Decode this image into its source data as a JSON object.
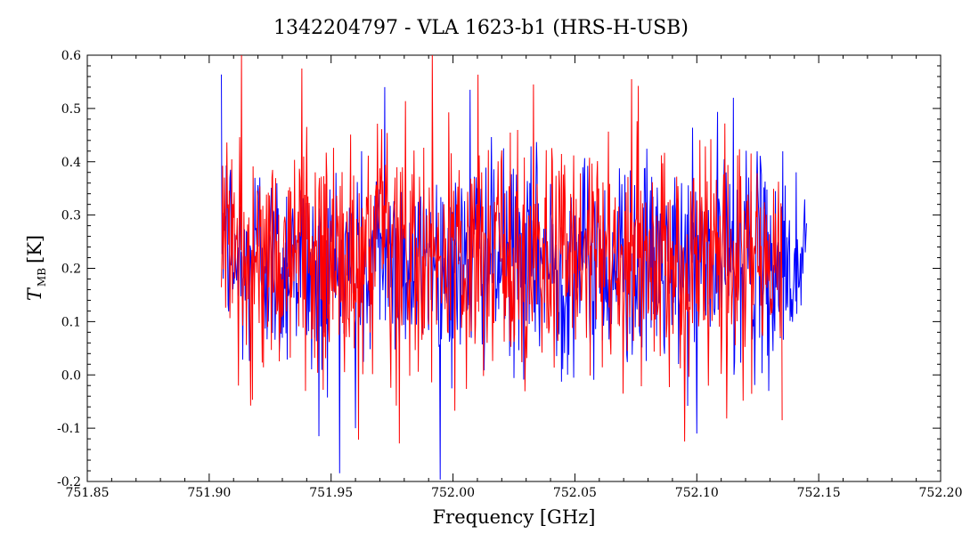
{
  "chart_data": {
    "type": "line",
    "title": "1342204797 - VLA 1623-b1 (HRS-H-USB)",
    "xlabel": "Frequency [GHz]",
    "ylabel": {
      "symbol": "T",
      "subscript": "MB",
      "unit": "[K]"
    },
    "xlim": [
      751.85,
      752.2
    ],
    "ylim": [
      -0.2,
      0.6
    ],
    "xticks": [
      751.85,
      751.9,
      751.95,
      752.0,
      752.05,
      752.1,
      752.15,
      752.2
    ],
    "xtick_labels": [
      "751.85",
      "751.90",
      "751.95",
      "752.00",
      "752.05",
      "752.10",
      "752.15",
      "752.20"
    ],
    "yticks": [
      -0.2,
      -0.1,
      0.0,
      0.1,
      0.2,
      0.3,
      0.4,
      0.5,
      0.6
    ],
    "ytick_labels": [
      "-0.2",
      "-0.1",
      "0.0",
      "0.1",
      "0.2",
      "0.3",
      "0.4",
      "0.5",
      "0.6"
    ],
    "grid": false,
    "legend": "none",
    "series": [
      {
        "color": "#0000ff",
        "x_start": 751.905,
        "x_end": 752.145,
        "points": [
          [
            751.905,
            0.3
          ],
          [
            751.91,
            0.22
          ],
          [
            751.915,
            0.18
          ],
          [
            751.92,
            0.25
          ],
          [
            751.925,
            0.21
          ],
          [
            751.93,
            0.19
          ],
          [
            751.935,
            0.24
          ],
          [
            751.94,
            0.2
          ],
          [
            751.945,
            0.16
          ],
          [
            751.95,
            0.22
          ],
          [
            751.955,
            0.19
          ],
          [
            751.96,
            0.23
          ],
          [
            751.965,
            0.17
          ],
          [
            751.97,
            0.25
          ],
          [
            751.975,
            0.21
          ],
          [
            751.98,
            0.22
          ],
          [
            751.985,
            0.18
          ],
          [
            751.99,
            0.24
          ],
          [
            751.995,
            0.2
          ],
          [
            752.0,
            0.21
          ],
          [
            752.005,
            0.19
          ],
          [
            752.01,
            0.24
          ],
          [
            752.015,
            0.22
          ],
          [
            752.02,
            0.2
          ],
          [
            752.025,
            0.23
          ],
          [
            752.03,
            0.19
          ],
          [
            752.035,
            0.22
          ],
          [
            752.04,
            0.21
          ],
          [
            752.045,
            0.18
          ],
          [
            752.05,
            0.24
          ],
          [
            752.055,
            0.2
          ],
          [
            752.06,
            0.22
          ],
          [
            752.065,
            0.19
          ],
          [
            752.07,
            0.23
          ],
          [
            752.075,
            0.21
          ],
          [
            752.08,
            0.2
          ],
          [
            752.085,
            0.22
          ],
          [
            752.09,
            0.19
          ],
          [
            752.095,
            0.21
          ],
          [
            752.1,
            0.23
          ],
          [
            752.105,
            0.2
          ],
          [
            752.11,
            0.24
          ],
          [
            752.115,
            0.22
          ],
          [
            752.12,
            0.25
          ],
          [
            752.125,
            0.21
          ],
          [
            752.13,
            0.19
          ],
          [
            752.135,
            0.22
          ],
          [
            752.14,
            0.2
          ],
          [
            752.145,
            0.23
          ]
        ],
        "noise_rms": 0.095,
        "extremes": [
          {
            "x": 751.945,
            "y": -0.115
          },
          {
            "x": 751.96,
            "y": -0.1
          },
          {
            "x": 751.972,
            "y": 0.54
          },
          {
            "x": 752.007,
            "y": 0.535
          },
          {
            "x": 752.115,
            "y": 0.52
          },
          {
            "x": 752.1,
            "y": -0.11
          }
        ]
      },
      {
        "color": "#ff0000",
        "x_start": 751.905,
        "x_end": 752.135,
        "points": [
          [
            751.905,
            0.33
          ],
          [
            751.91,
            0.24
          ],
          [
            751.915,
            0.2
          ],
          [
            751.92,
            0.22
          ],
          [
            751.925,
            0.19
          ],
          [
            751.93,
            0.23
          ],
          [
            751.935,
            0.21
          ],
          [
            751.94,
            0.25
          ],
          [
            751.945,
            0.18
          ],
          [
            751.95,
            0.24
          ],
          [
            751.955,
            0.2
          ],
          [
            751.96,
            0.21
          ],
          [
            751.965,
            0.19
          ],
          [
            751.97,
            0.23
          ],
          [
            751.975,
            0.2
          ],
          [
            751.98,
            0.24
          ],
          [
            751.985,
            0.21
          ],
          [
            751.99,
            0.19
          ],
          [
            751.995,
            0.22
          ],
          [
            752.0,
            0.23
          ],
          [
            752.005,
            0.2
          ],
          [
            752.01,
            0.22
          ],
          [
            752.015,
            0.21
          ],
          [
            752.02,
            0.24
          ],
          [
            752.025,
            0.19
          ],
          [
            752.03,
            0.22
          ],
          [
            752.035,
            0.23
          ],
          [
            752.04,
            0.2
          ],
          [
            752.045,
            0.21
          ],
          [
            752.05,
            0.19
          ],
          [
            752.055,
            0.24
          ],
          [
            752.06,
            0.21
          ],
          [
            752.065,
            0.2
          ],
          [
            752.07,
            0.18
          ],
          [
            752.075,
            0.23
          ],
          [
            752.08,
            0.21
          ],
          [
            752.085,
            0.22
          ],
          [
            752.09,
            0.2
          ],
          [
            752.095,
            0.19
          ],
          [
            752.1,
            0.22
          ],
          [
            752.105,
            0.24
          ],
          [
            752.11,
            0.21
          ],
          [
            752.115,
            0.23
          ],
          [
            752.12,
            0.22
          ],
          [
            752.125,
            0.2
          ],
          [
            752.13,
            0.21
          ],
          [
            752.135,
            0.19
          ]
        ],
        "noise_rms": 0.11,
        "extremes": [
          {
            "x": 751.938,
            "y": 0.575
          },
          {
            "x": 752.033,
            "y": 0.545
          },
          {
            "x": 752.095,
            "y": -0.125
          },
          {
            "x": 752.135,
            "y": -0.085
          },
          {
            "x": 751.912,
            "y": -0.02
          }
        ]
      }
    ]
  }
}
